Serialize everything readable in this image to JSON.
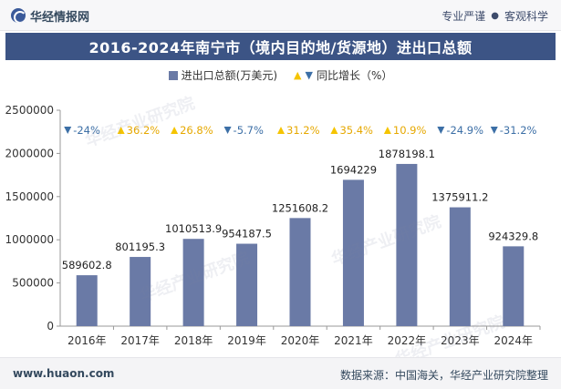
{
  "header": {
    "brand": "华经情报网",
    "right_links": [
      "专业严谨",
      "客观科学"
    ]
  },
  "chart_data": {
    "type": "bar",
    "title": "2016-2024年南宁市（境内目的地/货源地）进出口总额",
    "categories": [
      "2016年",
      "2017年",
      "2018年",
      "2019年",
      "2020年",
      "2021年",
      "2022年",
      "2023年",
      "2024年"
    ],
    "series": [
      {
        "name": "进出口总额(万美元)",
        "values": [
          589602.8,
          801195.3,
          1010513.9,
          954187.5,
          1251608.2,
          1694229,
          1878198.1,
          1375911.2,
          924329.8
        ],
        "labels": [
          "589602.8",
          "801195.3",
          "1010513.9",
          "954187.5",
          "1251608.2",
          "1694229",
          "1878198.1",
          "1375911.2",
          "924329.8"
        ],
        "color": "#6a7aa6"
      },
      {
        "name": "同比增长（%）",
        "values": [
          -24,
          36.2,
          26.8,
          -5.7,
          31.2,
          35.4,
          10.9,
          -24.9,
          -31.2
        ],
        "labels": [
          "-24%",
          "36.2%",
          "26.8%",
          "-5.7%",
          "31.2%",
          "35.4%",
          "10.9%",
          "-24.9%",
          "-31.2%"
        ],
        "up_color": "#f5c400",
        "down_color": "#3c6fa6"
      }
    ],
    "ylim": [
      0,
      2500000
    ],
    "yticks": [
      "0",
      "500000",
      "1000000",
      "1500000",
      "2000000",
      "2500000"
    ],
    "ytick_values": [
      0,
      500000,
      1000000,
      1500000,
      2000000,
      2500000
    ],
    "xlabel": "",
    "ylabel": ""
  },
  "legend": {
    "bar_label": "进出口总额(万美元)",
    "growth_label": "同比增长（%）"
  },
  "watermark": "华经产业研究院",
  "footer": {
    "website": "www.huaon.com",
    "source": "数据来源：中国海关，华经产业研究院整理"
  }
}
